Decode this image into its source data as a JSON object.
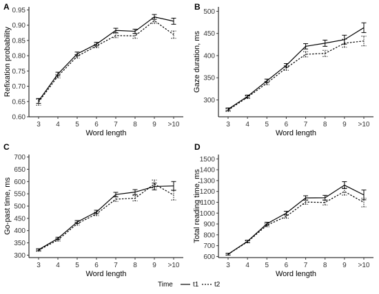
{
  "legend": {
    "title": "Time",
    "entries": [
      "t1",
      "t2"
    ]
  },
  "chart_data": [
    {
      "type": "line",
      "panel": "A",
      "xlabel": "Word length",
      "ylabel": "Refixation probability",
      "categories": [
        "3",
        "4",
        "5",
        "6",
        "7",
        "8",
        "9",
        ">10"
      ],
      "ylim": [
        0.6,
        0.96
      ],
      "yticks": [
        0.6,
        0.65,
        0.7,
        0.75,
        0.8,
        0.85,
        0.9,
        0.95
      ],
      "ytick_labels": [
        "0.60",
        "0.65",
        "0.70",
        "0.75",
        "0.80",
        "0.85",
        "0.90",
        "0.95"
      ],
      "series": [
        {
          "name": "t1",
          "style": "solid",
          "values": [
            0.652,
            0.74,
            0.806,
            0.838,
            0.883,
            0.88,
            0.927,
            0.913
          ],
          "err": [
            0.008,
            0.006,
            0.006,
            0.006,
            0.007,
            0.007,
            0.008,
            0.01
          ]
        },
        {
          "name": "t2",
          "style": "dashed",
          "values": [
            0.648,
            0.733,
            0.798,
            0.832,
            0.866,
            0.865,
            0.915,
            0.869
          ],
          "err": [
            0.01,
            0.006,
            0.006,
            0.006,
            0.007,
            0.008,
            0.009,
            0.012
          ]
        }
      ]
    },
    {
      "type": "line",
      "panel": "B",
      "xlabel": "Word length",
      "ylabel": "Gaze duration, ms",
      "categories": [
        "3",
        "4",
        "5",
        "6",
        "7",
        "8",
        "9",
        ">10"
      ],
      "ylim": [
        262,
        510
      ],
      "yticks": [
        300,
        350,
        400,
        450,
        500
      ],
      "ytick_labels": [
        "300",
        "350",
        "400",
        "450",
        "500"
      ],
      "series": [
        {
          "name": "t1",
          "style": "solid",
          "values": [
            279,
            308,
            343,
            378,
            421,
            428,
            436,
            463
          ],
          "err": [
            3,
            3,
            4,
            4,
            6,
            7,
            10,
            11
          ]
        },
        {
          "name": "t2",
          "style": "dashed",
          "values": [
            277,
            306,
            338,
            372,
            403,
            405,
            428,
            433
          ],
          "err": [
            3,
            3,
            4,
            5,
            6,
            7,
            9,
            11
          ]
        }
      ]
    },
    {
      "type": "line",
      "panel": "C",
      "xlabel": "Word length",
      "ylabel": "Go-past time, ms",
      "categories": [
        "3",
        "4",
        "5",
        "6",
        "7",
        "8",
        "9",
        ">10"
      ],
      "ylim": [
        290,
        710
      ],
      "yticks": [
        300,
        350,
        400,
        450,
        500,
        550,
        600,
        650,
        700
      ],
      "ytick_labels": [
        "300",
        "350",
        "400",
        "450",
        "500",
        "550",
        "600",
        "650",
        "700"
      ],
      "series": [
        {
          "name": "t1",
          "style": "solid",
          "values": [
            322,
            368,
            435,
            476,
            547,
            557,
            580,
            582
          ],
          "err": [
            4,
            5,
            6,
            7,
            9,
            10,
            14,
            18
          ]
        },
        {
          "name": "t2",
          "style": "dashed",
          "values": [
            320,
            362,
            428,
            468,
            528,
            532,
            590,
            545
          ],
          "err": [
            4,
            5,
            6,
            7,
            9,
            11,
            16,
            20
          ]
        }
      ]
    },
    {
      "type": "line",
      "panel": "D",
      "xlabel": "Word length",
      "ylabel": "Total reading time, ms",
      "categories": [
        "3",
        "4",
        "5",
        "6",
        "7",
        "8",
        "9",
        ">10"
      ],
      "ylim": [
        590,
        1540
      ],
      "yticks": [
        600,
        700,
        800,
        900,
        1000,
        1100,
        1200,
        1300,
        1400,
        1500
      ],
      "ytick_labels": [
        "600",
        "700",
        "800",
        "900",
        "1000",
        "1100",
        "1200",
        "1300",
        "1400",
        "1500"
      ],
      "series": [
        {
          "name": "t1",
          "style": "solid",
          "values": [
            622,
            740,
            902,
            1000,
            1140,
            1142,
            1258,
            1168
          ],
          "err": [
            8,
            10,
            14,
            17,
            20,
            22,
            32,
            45
          ]
        },
        {
          "name": "t2",
          "style": "dashed",
          "values": [
            620,
            735,
            888,
            970,
            1102,
            1098,
            1200,
            1098
          ],
          "err": [
            8,
            10,
            14,
            17,
            20,
            23,
            34,
            40
          ]
        }
      ]
    }
  ]
}
